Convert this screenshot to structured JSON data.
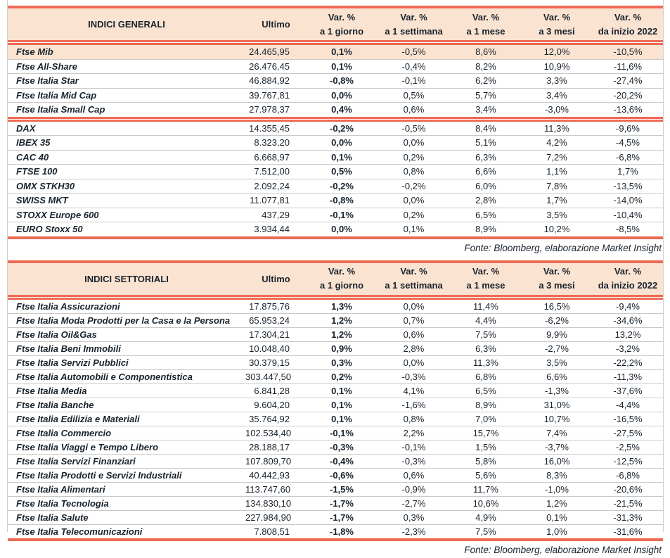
{
  "header": {
    "ultimo_label": "Ultimo",
    "var_label": "Var. %",
    "periods": [
      "a 1 giorno",
      "a 1 settimana",
      "a 1 mese",
      "a 3 mesi",
      "da inizio 2022"
    ]
  },
  "tables": [
    {
      "title": "INDICI GENERALI",
      "source": "Fonte: Bloomberg, elaborazione Market Insight",
      "groups": [
        {
          "rows": [
            {
              "label": "Ftse Mib",
              "ultimo": "24.465,95",
              "pct": [
                "0,1%",
                "-0,5%",
                "8,6%",
                "12,0%",
                "-10,5%"
              ],
              "highlight": true
            },
            {
              "label": "Ftse All-Share",
              "ultimo": "26.476,45",
              "pct": [
                "0,1%",
                "-0,4%",
                "8,2%",
                "10,9%",
                "-11,6%"
              ],
              "highlight": false
            },
            {
              "label": "Ftse Italia Star",
              "ultimo": "46.884,92",
              "pct": [
                "-0,8%",
                "-0,1%",
                "6,2%",
                "3,3%",
                "-27,4%"
              ],
              "highlight": false
            },
            {
              "label": "Ftse Italia Mid Cap",
              "ultimo": "39.767,81",
              "pct": [
                "0,0%",
                "0,5%",
                "5,7%",
                "3,4%",
                "-20,2%"
              ],
              "highlight": false
            },
            {
              "label": "Ftse Italia Small Cap",
              "ultimo": "27.978,37",
              "pct": [
                "0,4%",
                "0,6%",
                "3,4%",
                "-3,0%",
                "-13,6%"
              ],
              "highlight": false
            }
          ]
        },
        {
          "rows": [
            {
              "label": "DAX",
              "ultimo": "14.355,45",
              "pct": [
                "-0,2%",
                "-0,5%",
                "8,4%",
                "11,3%",
                "-9,6%"
              ],
              "highlight": false
            },
            {
              "label": "IBEX 35",
              "ultimo": "8.323,20",
              "pct": [
                "0,0%",
                "0,0%",
                "5,1%",
                "4,2%",
                "-4,5%"
              ],
              "highlight": false
            },
            {
              "label": "CAC 40",
              "ultimo": "6.668,97",
              "pct": [
                "0,1%",
                "0,2%",
                "6,3%",
                "7,2%",
                "-6,8%"
              ],
              "highlight": false
            },
            {
              "label": "FTSE 100",
              "ultimo": "7.512,00",
              "pct": [
                "0,5%",
                "0,8%",
                "6,6%",
                "1,1%",
                "1,7%"
              ],
              "highlight": false
            },
            {
              "label": "OMX STKH30",
              "ultimo": "2.092,24",
              "pct": [
                "-0,2%",
                "-0,2%",
                "6,0%",
                "7,8%",
                "-13,5%"
              ],
              "highlight": false
            },
            {
              "label": "SWISS MKT",
              "ultimo": "11.077,81",
              "pct": [
                "-0,8%",
                "0,0%",
                "2,8%",
                "1,7%",
                "-14,0%"
              ],
              "highlight": false
            },
            {
              "label": "STOXX Europe 600",
              "ultimo": "437,29",
              "pct": [
                "-0,1%",
                "0,2%",
                "6,5%",
                "3,5%",
                "-10,4%"
              ],
              "highlight": false
            },
            {
              "label": "EURO Stoxx 50",
              "ultimo": "3.934,44",
              "pct": [
                "0,0%",
                "0,1%",
                "8,9%",
                "10,2%",
                "-8,5%"
              ],
              "highlight": false
            }
          ]
        }
      ]
    },
    {
      "title": "INDICI SETTORIALI",
      "source": "Fonte: Bloomberg, elaborazione Market Insight",
      "groups": [
        {
          "rows": [
            {
              "label": "Ftse Italia Assicurazioni",
              "ultimo": "17.875,76",
              "pct": [
                "1,3%",
                "0,0%",
                "11,4%",
                "16,5%",
                "-9,4%"
              ],
              "highlight": false
            },
            {
              "label": "Ftse Italia Moda Prodotti per la Casa e la Persona",
              "ultimo": "65.953,24",
              "pct": [
                "1,2%",
                "0,7%",
                "4,4%",
                "-6,2%",
                "-34,6%"
              ],
              "highlight": false
            },
            {
              "label": "Ftse Italia Oil&Gas",
              "ultimo": "17.304,21",
              "pct": [
                "1,2%",
                "0,6%",
                "7,5%",
                "9,9%",
                "13,2%"
              ],
              "highlight": false
            },
            {
              "label": "Ftse Italia Beni Immobili",
              "ultimo": "10.048,40",
              "pct": [
                "0,9%",
                "2,8%",
                "6,3%",
                "-2,7%",
                "-3,2%"
              ],
              "highlight": false
            },
            {
              "label": "Ftse Italia Servizi Pubblici",
              "ultimo": "30.379,15",
              "pct": [
                "0,3%",
                "0,0%",
                "11,3%",
                "3,5%",
                "-22,2%"
              ],
              "highlight": false
            },
            {
              "label": "Ftse Italia Automobili e Componentistica",
              "ultimo": "303.447,50",
              "pct": [
                "0,2%",
                "-0,3%",
                "6,8%",
                "6,6%",
                "-11,3%"
              ],
              "highlight": false
            },
            {
              "label": "Ftse Italia Media",
              "ultimo": "6.841,28",
              "pct": [
                "0,1%",
                "4,1%",
                "6,5%",
                "-1,3%",
                "-37,6%"
              ],
              "highlight": false
            },
            {
              "label": "Ftse Italia Banche",
              "ultimo": "9.604,20",
              "pct": [
                "0,1%",
                "-1,6%",
                "8,9%",
                "31,0%",
                "-4,4%"
              ],
              "highlight": false
            },
            {
              "label": "Ftse Italia Edilizia e Materiali",
              "ultimo": "35.764,92",
              "pct": [
                "0,1%",
                "0,8%",
                "7,0%",
                "10,7%",
                "-16,5%"
              ],
              "highlight": false
            },
            {
              "label": "Ftse Italia Commercio",
              "ultimo": "102.534,40",
              "pct": [
                "-0,1%",
                "2,2%",
                "15,7%",
                "7,4%",
                "-27,5%"
              ],
              "highlight": false
            },
            {
              "label": "Ftse Italia Viaggi e Tempo Libero",
              "ultimo": "28.188,17",
              "pct": [
                "-0,3%",
                "-0,1%",
                "1,5%",
                "-3,7%",
                "-2,5%"
              ],
              "highlight": false
            },
            {
              "label": "Ftse Italia Servizi Finanziari",
              "ultimo": "107.809,70",
              "pct": [
                "-0,4%",
                "-0,3%",
                "5,8%",
                "16,0%",
                "-12,5%"
              ],
              "highlight": false
            },
            {
              "label": "Ftse Italia Prodotti e Servizi Industriali",
              "ultimo": "40.442,93",
              "pct": [
                "-0,6%",
                "0,6%",
                "5,6%",
                "8,3%",
                "-6,8%"
              ],
              "highlight": false
            },
            {
              "label": "Ftse Italia Alimentari",
              "ultimo": "113.747,60",
              "pct": [
                "-1,5%",
                "-0,9%",
                "11,7%",
                "-1,0%",
                "-20,6%"
              ],
              "highlight": false
            },
            {
              "label": "Ftse Italia Tecnologia",
              "ultimo": "134.830,10",
              "pct": [
                "-1,7%",
                "-2,7%",
                "10,6%",
                "1,2%",
                "-21,5%"
              ],
              "highlight": false
            },
            {
              "label": "Ftse Italia Salute",
              "ultimo": "227.984,90",
              "pct": [
                "-1,7%",
                "0,3%",
                "4,9%",
                "0,1%",
                "-31,3%"
              ],
              "highlight": false
            },
            {
              "label": "Ftse Italia Telecomunicazioni",
              "ultimo": "7.808,51",
              "pct": [
                "-1,8%",
                "-2,3%",
                "7,5%",
                "1,0%",
                "-31,6%"
              ],
              "highlight": false
            }
          ]
        }
      ]
    }
  ],
  "colors": {
    "accent_red": "#ee6b53",
    "header_peach": "#fbe3d1",
    "row_separator": "#c9c9c9",
    "text": "#18232d"
  }
}
